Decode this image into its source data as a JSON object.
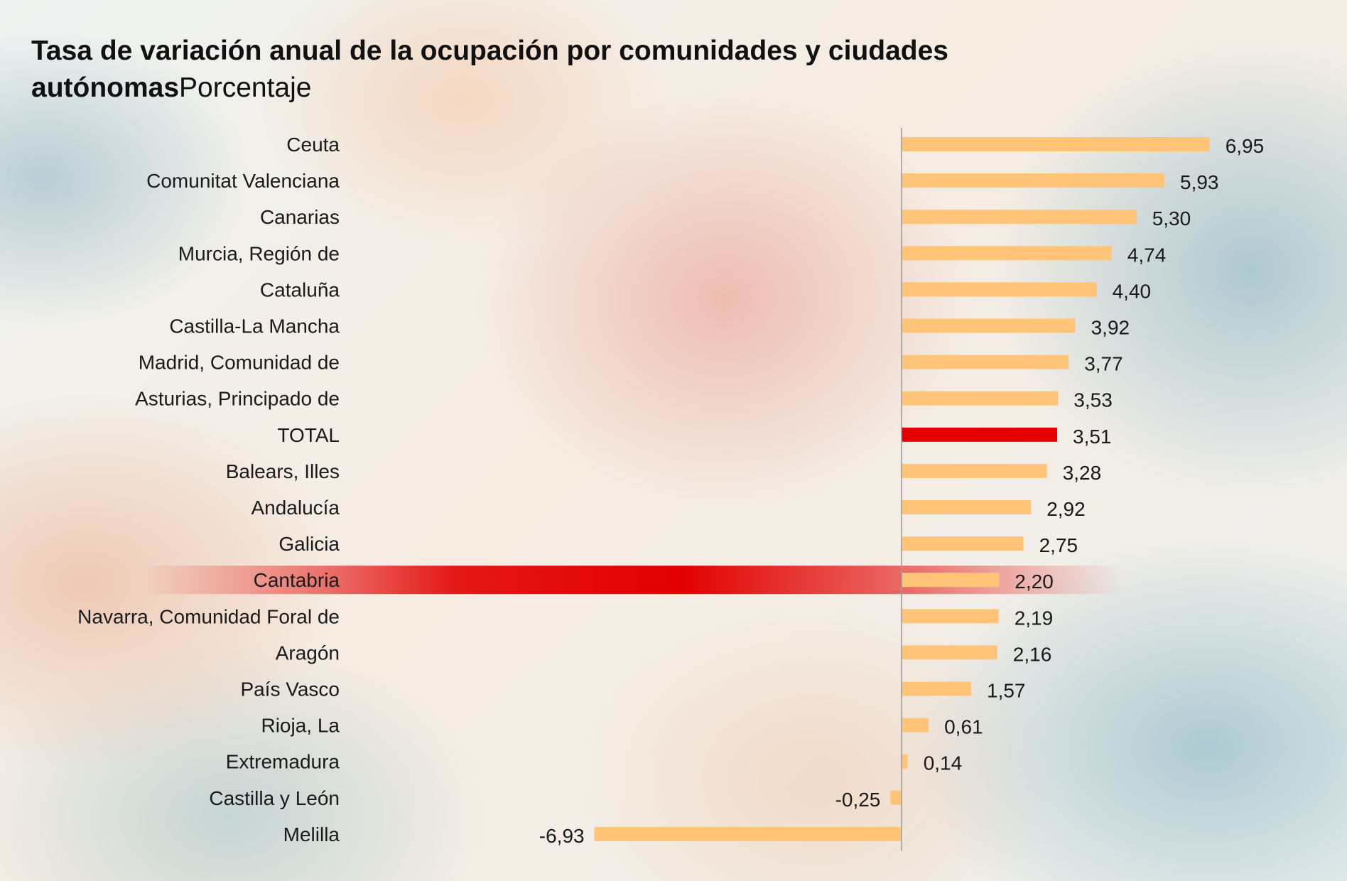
{
  "title": {
    "main": "Tasa de variación anual de la ocupación por comunidades y ciudades autónomas",
    "sub": "Porcentaje"
  },
  "colors": {
    "bar": "#ffc478",
    "highlight": "#e20000",
    "axis": "#9a9a9a",
    "text": "#1a1a1a"
  },
  "chart_data": {
    "type": "bar",
    "orientation": "horizontal",
    "title": "Tasa de variación anual de la ocupación por comunidades y ciudades autónomas",
    "subtitle": "Porcentaje",
    "xlabel": "",
    "ylabel": "",
    "xlim": [
      -6.93,
      6.95
    ],
    "grid": false,
    "categories": [
      "Ceuta",
      "Comunitat Valenciana",
      "Canarias",
      "Murcia, Región de",
      "Cataluña",
      "Castilla-La Mancha",
      "Madrid, Comunidad de",
      "Asturias, Principado de",
      "TOTAL",
      "Balears, Illes",
      "Andalucía",
      "Galicia",
      "Cantabria",
      "Navarra, Comunidad Foral de",
      "Aragón",
      "País Vasco",
      "Rioja, La",
      "Extremadura",
      "Castilla y León",
      "Melilla"
    ],
    "values": [
      6.95,
      5.93,
      5.3,
      4.74,
      4.4,
      3.92,
      3.77,
      3.53,
      3.51,
      3.28,
      2.92,
      2.75,
      2.2,
      2.19,
      2.16,
      1.57,
      0.61,
      0.14,
      -0.25,
      -6.93
    ],
    "value_labels": [
      "6,95",
      "5,93",
      "5,30",
      "4,74",
      "4,40",
      "3,92",
      "3,77",
      "3,53",
      "3,51",
      "3,28",
      "2,92",
      "2,75",
      "2,20",
      "2,19",
      "2,16",
      "1,57",
      "0,61",
      "0,14",
      "-0,25",
      "-6,93"
    ],
    "highlighted_bar": "TOTAL",
    "highlighted_row": "Cantabria"
  }
}
